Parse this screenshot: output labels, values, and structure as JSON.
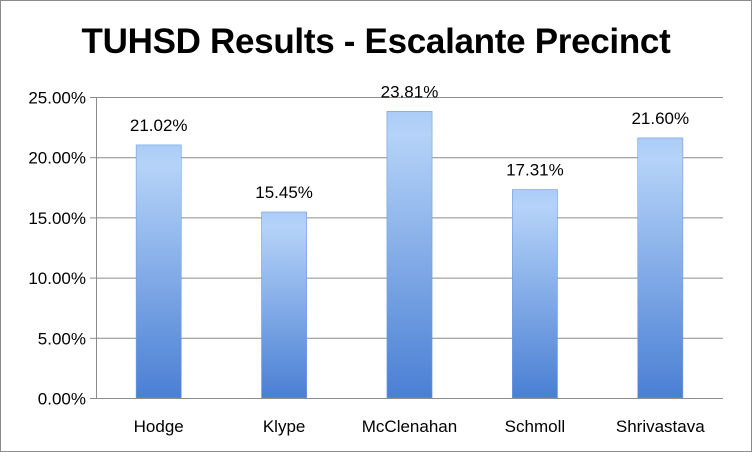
{
  "chart_data": {
    "type": "bar",
    "title": "TUHSD Results - Escalante Precinct",
    "xlabel": "",
    "ylabel": "",
    "categories": [
      "Hodge",
      "Klype",
      "McClenahan",
      "Schmoll",
      "Shrivastava"
    ],
    "values": [
      21.02,
      15.45,
      23.81,
      17.31,
      21.6
    ],
    "data_labels": [
      "21.02%",
      "15.45%",
      "23.81%",
      "17.31%",
      "21.60%"
    ],
    "ylim": [
      0,
      25
    ],
    "y_ticks": [
      0,
      5,
      10,
      15,
      20,
      25
    ],
    "y_tick_labels": [
      "0.00%",
      "5.00%",
      "10.00%",
      "15.00%",
      "20.00%",
      "25.00%"
    ],
    "grid": true,
    "legend": "none",
    "colors": {
      "bar_light": "#aaccf7",
      "bar_dark": "#4a7fd4",
      "gridline": "#8c8c8c",
      "axis": "#8c8c8c"
    }
  }
}
